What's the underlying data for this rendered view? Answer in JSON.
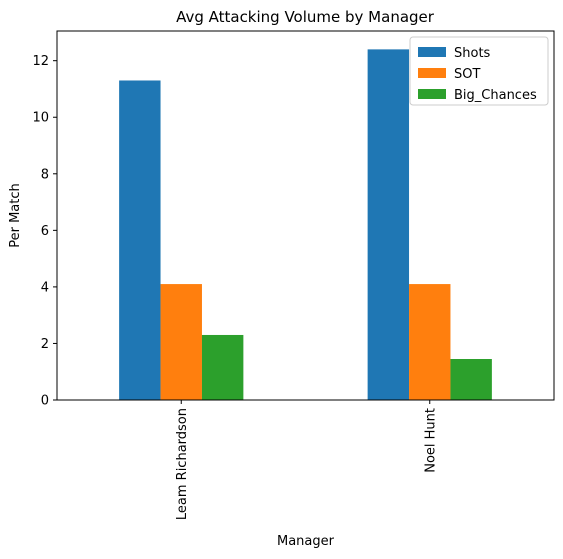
{
  "chart_data": {
    "type": "bar",
    "title": "Avg Attacking Volume by Manager",
    "xlabel": "Manager",
    "ylabel": "Per Match",
    "categories": [
      "Leam Richardson",
      "Noel Hunt"
    ],
    "series": [
      {
        "name": "Shots",
        "values": [
          11.3,
          12.4
        ],
        "color": "#1f77b4"
      },
      {
        "name": "SOT",
        "values": [
          4.1,
          4.1
        ],
        "color": "#ff7f0e"
      },
      {
        "name": "Big_Chances",
        "values": [
          2.3,
          1.45
        ],
        "color": "#2ca02c"
      }
    ],
    "ylim": [
      0,
      13.05
    ],
    "yticks": [
      0,
      2,
      4,
      6,
      8,
      10,
      12
    ],
    "legend_position": "top-right",
    "grid": false
  }
}
